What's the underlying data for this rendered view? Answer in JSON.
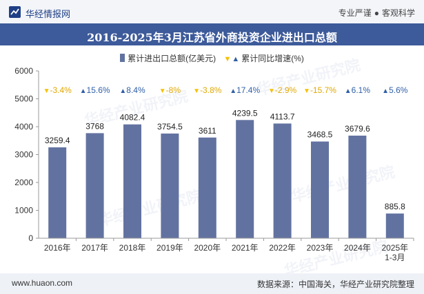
{
  "header": {
    "brand": "华经情报网",
    "tagline_left": "专业严谨",
    "tagline_sep": "●",
    "tagline_right": "客观科学"
  },
  "title": "2016-2025年3月江苏省外商投资企业进出口总额",
  "legend": {
    "bar_label": "累计进出口总额(亿美元)",
    "growth_label": "累计同比增速(%)"
  },
  "watermark": "华经产业研究院",
  "footer": {
    "url": "www.huaon.com",
    "source": "数据来源：中国海关，华经产业研究院整理"
  },
  "colors": {
    "bar": "#6272a0",
    "up": "#2f5ea6",
    "down": "#f5c000",
    "title_bg": "#3d5a9a"
  },
  "chart_data": {
    "type": "bar",
    "categories": [
      "2016年",
      "2017年",
      "2018年",
      "2019年",
      "2020年",
      "2021年",
      "2022年",
      "2023年",
      "2024年",
      "2025年\n1-3月"
    ],
    "series": [
      {
        "name": "累计进出口总额(亿美元)",
        "values": [
          3259.4,
          3768,
          4082.4,
          3754.5,
          3611,
          4239.5,
          4113.7,
          3468.5,
          3679.6,
          885.8
        ],
        "value_labels": [
          "3259.4",
          "3768",
          "4082.4",
          "3754.5",
          "3611",
          "4239.5",
          "4113.7",
          "3468.5",
          "3679.6",
          "885.8"
        ]
      },
      {
        "name": "累计同比增速(%)",
        "values": [
          -3.4,
          15.6,
          8.4,
          -8,
          -3.8,
          17.4,
          -2.9,
          -15.7,
          6.1,
          5.6
        ],
        "value_labels": [
          "-3.4%",
          "15.6%",
          "8.4%",
          "-8%",
          "-3.8%",
          "17.4%",
          "-2.9%",
          "-15.7%",
          "6.1%",
          "5.6%"
        ]
      }
    ],
    "yticks": [
      0,
      1000,
      2000,
      3000,
      4000,
      5000,
      6000
    ],
    "ylim": [
      0,
      6000
    ],
    "legend_position": "top"
  }
}
